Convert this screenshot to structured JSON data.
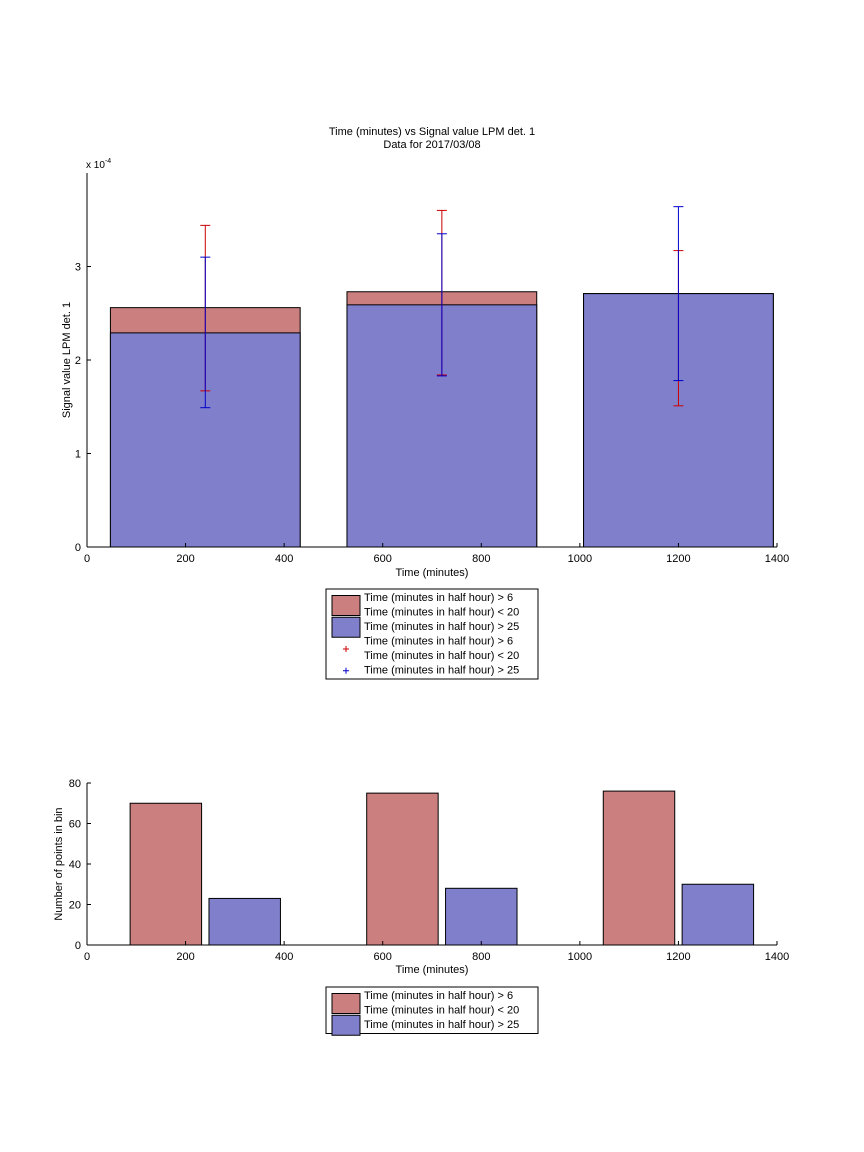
{
  "chart_data": [
    {
      "type": "bar",
      "title": "Time (minutes) vs Signal value LPM det. 1",
      "subtitle": "Data for 2017/03/08",
      "xlabel": "Time (minutes)",
      "ylabel": "Signal value LPM det. 1",
      "y_exponent_label": "x 10",
      "y_exponent_power": "-4",
      "xlim": [
        0,
        1400
      ],
      "ylim": [
        0,
        4
      ],
      "x_ticks": [
        0,
        200,
        400,
        600,
        800,
        1000,
        1200,
        1400
      ],
      "y_ticks": [
        0,
        1,
        2,
        3
      ],
      "grid": false,
      "bar_width": 385,
      "categories": [
        240,
        720,
        1200
      ],
      "series": [
        {
          "name": "Time (minutes in half hour) > 6\nTime (minutes in half hour) < 20",
          "color": "#cc7f7f",
          "values": [
            2.56,
            2.73,
            2.71
          ]
        },
        {
          "name": "Time (minutes in half hour) > 25",
          "color": "#7f7fcc",
          "values": [
            2.29,
            2.59,
            2.71
          ]
        }
      ],
      "error_bars": [
        {
          "name": "Time (minutes in half hour) > 6\nTime (minutes in half hour) < 20",
          "color": "#cc0000",
          "marker": "+",
          "x": [
            240,
            720,
            1200
          ],
          "low": [
            1.67,
            1.84,
            1.51
          ],
          "high": [
            3.44,
            3.6,
            3.17
          ]
        },
        {
          "name": "Time (minutes in half hour) > 25",
          "color": "#0000cc",
          "marker": "+",
          "x": [
            240,
            720,
            1200
          ],
          "low": [
            1.49,
            1.83,
            1.78
          ],
          "high": [
            3.1,
            3.35,
            3.64
          ]
        }
      ],
      "legend": {
        "placement": "below",
        "entries": [
          {
            "label": "Time (minutes in half hour) > 6",
            "label2": "Time (minutes in half hour) < 20",
            "kind": "patch",
            "color": "#cc7f7f"
          },
          {
            "label": "Time (minutes in half hour) > 25",
            "kind": "patch",
            "color": "#7f7fcc"
          },
          {
            "label": "Time (minutes in half hour) > 6",
            "label2": "Time (minutes in half hour) < 20",
            "kind": "marker",
            "color": "#cc0000"
          },
          {
            "label": "Time (minutes in half hour) > 25",
            "kind": "marker",
            "color": "#0000cc"
          }
        ]
      }
    },
    {
      "type": "bar",
      "title": "",
      "xlabel": "Time (minutes)",
      "ylabel": "Number of points in bin",
      "xlim": [
        0,
        1400
      ],
      "ylim": [
        0,
        80
      ],
      "x_ticks": [
        0,
        200,
        400,
        600,
        800,
        1000,
        1200,
        1400
      ],
      "y_ticks": [
        0,
        20,
        40,
        60,
        80
      ],
      "grid": false,
      "bar_width": 145,
      "series": [
        {
          "name": "Time (minutes in half hour) > 6\nTime (minutes in half hour) < 20",
          "color": "#cc7f7f",
          "x": [
            160,
            640,
            1120
          ],
          "values": [
            70,
            75,
            76
          ]
        },
        {
          "name": "Time (minutes in half hour) > 25",
          "color": "#7f7fcc",
          "x": [
            320,
            800,
            1280
          ],
          "values": [
            23,
            28,
            30
          ]
        }
      ],
      "legend": {
        "placement": "below",
        "entries": [
          {
            "label": "Time (minutes in half hour) > 6",
            "label2": "Time (minutes in half hour) < 20",
            "kind": "patch",
            "color": "#cc7f7f"
          },
          {
            "label": "Time (minutes in half hour) > 25",
            "kind": "patch",
            "color": "#7f7fcc"
          }
        ]
      }
    }
  ]
}
